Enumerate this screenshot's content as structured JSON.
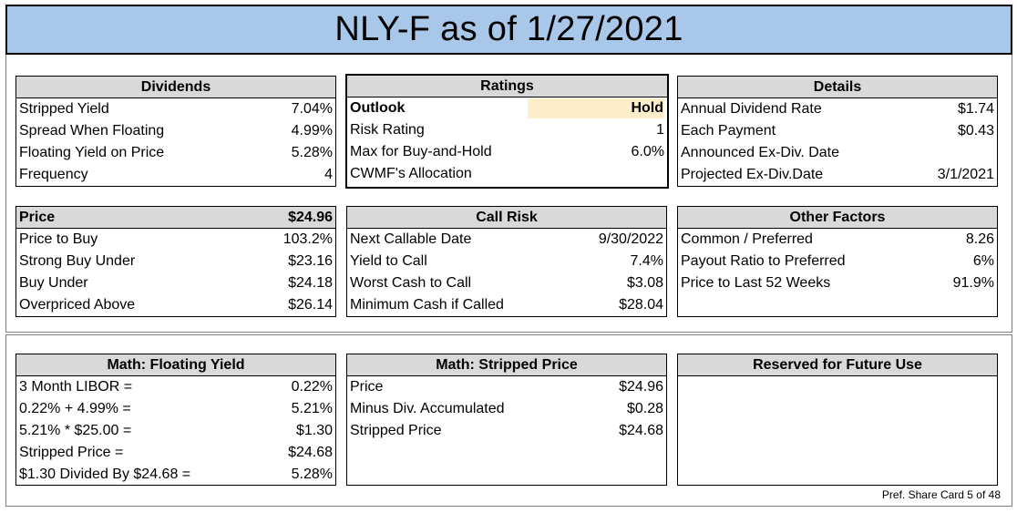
{
  "title": "NLY-F as of 1/27/2021",
  "dividends": {
    "header": "Dividends",
    "rows": [
      {
        "label": "Stripped Yield",
        "value": "7.04%"
      },
      {
        "label": "Spread When Floating",
        "value": "4.99%"
      },
      {
        "label": "Floating Yield on Price",
        "value": "5.28%"
      },
      {
        "label": "Frequency",
        "value": "4"
      }
    ]
  },
  "ratings": {
    "header": "Ratings",
    "rows": [
      {
        "label": "Outlook",
        "value": "Hold"
      },
      {
        "label": "Risk Rating",
        "value": "1"
      },
      {
        "label": "Max for Buy-and-Hold",
        "value": "6.0%"
      },
      {
        "label": "CWMF's Allocation",
        "value": ""
      }
    ]
  },
  "details": {
    "header": "Details",
    "rows": [
      {
        "label": "Annual Dividend Rate",
        "value": "$1.74"
      },
      {
        "label": "Each Payment",
        "value": "$0.43"
      },
      {
        "label": "Announced Ex-Div. Date",
        "value": ""
      },
      {
        "label": "Projected Ex-Div.Date",
        "value": "3/1/2021"
      }
    ]
  },
  "price": {
    "header_label": "Price",
    "header_value": "$24.96",
    "rows": [
      {
        "label": "Price to Buy",
        "value": "103.2%"
      },
      {
        "label": "Strong Buy Under",
        "value": "$23.16"
      },
      {
        "label": "Buy Under",
        "value": "$24.18"
      },
      {
        "label": "Overpriced Above",
        "value": "$26.14"
      }
    ]
  },
  "call_risk": {
    "header": "Call Risk",
    "rows": [
      {
        "label": "Next Callable Date",
        "value": "9/30/2022"
      },
      {
        "label": "Yield to Call",
        "value": "7.4%"
      },
      {
        "label": "Worst Cash to Call",
        "value": "$3.08"
      },
      {
        "label": "Minimum Cash if Called",
        "value": "$28.04"
      }
    ]
  },
  "other_factors": {
    "header": "Other Factors",
    "rows": [
      {
        "label": "Common / Preferred",
        "value": "8.26"
      },
      {
        "label": "Payout Ratio to Preferred",
        "value": "6%"
      },
      {
        "label": "Price to Last 52 Weeks",
        "value": "91.9%"
      }
    ]
  },
  "math_floating": {
    "header": "Math: Floating Yield",
    "rows": [
      {
        "label": "3 Month LIBOR =",
        "value": "0.22%"
      },
      {
        "label": "0.22% + 4.99% =",
        "value": "5.21%"
      },
      {
        "label": "5.21% * $25.00 =",
        "value": "$1.30"
      },
      {
        "label": "Stripped Price =",
        "value": "$24.68"
      },
      {
        "label": "$1.30 Divided By $24.68 =",
        "value": "5.28%"
      }
    ]
  },
  "math_stripped": {
    "header": "Math: Stripped Price",
    "rows": [
      {
        "label": "Price",
        "value": "$24.96"
      },
      {
        "label": "Minus Div. Accumulated",
        "value": "$0.28"
      },
      {
        "label": "Stripped Price",
        "value": "$24.68"
      }
    ]
  },
  "reserved": {
    "header": "Reserved for Future Use"
  },
  "footer": "Pref. Share Card 5 of 48"
}
